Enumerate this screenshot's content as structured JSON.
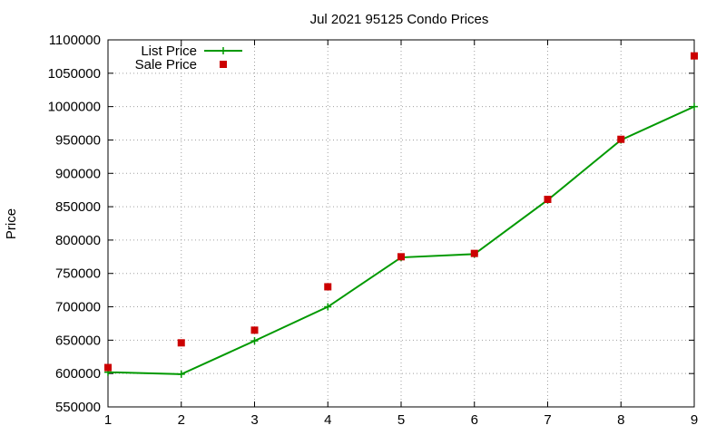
{
  "chart_data": {
    "type": "line",
    "title": "Jul 2021 95125 Condo Prices",
    "xlabel": "",
    "ylabel": "Price",
    "xlim": [
      1,
      9
    ],
    "ylim": [
      550000,
      1100000
    ],
    "x_ticks": [
      1,
      2,
      3,
      4,
      5,
      6,
      7,
      8,
      9
    ],
    "y_ticks": [
      550000,
      600000,
      650000,
      700000,
      750000,
      800000,
      850000,
      900000,
      950000,
      1000000,
      1050000,
      1100000
    ],
    "grid": true,
    "legend_position": "top-left",
    "series": [
      {
        "name": "List Price",
        "style": "line+cross",
        "color": "#009900",
        "x": [
          1,
          2,
          3,
          4,
          5,
          6,
          7,
          8,
          9
        ],
        "values": [
          602000,
          599000,
          649000,
          700000,
          774000,
          779000,
          860000,
          950000,
          1000000
        ]
      },
      {
        "name": "Sale Price",
        "style": "square",
        "color": "#cc0000",
        "x": [
          1,
          2,
          3,
          4,
          5,
          6,
          7,
          8,
          9
        ],
        "values": [
          609000,
          646000,
          665000,
          730000,
          775000,
          780000,
          861000,
          951000,
          1076000
        ]
      }
    ]
  }
}
